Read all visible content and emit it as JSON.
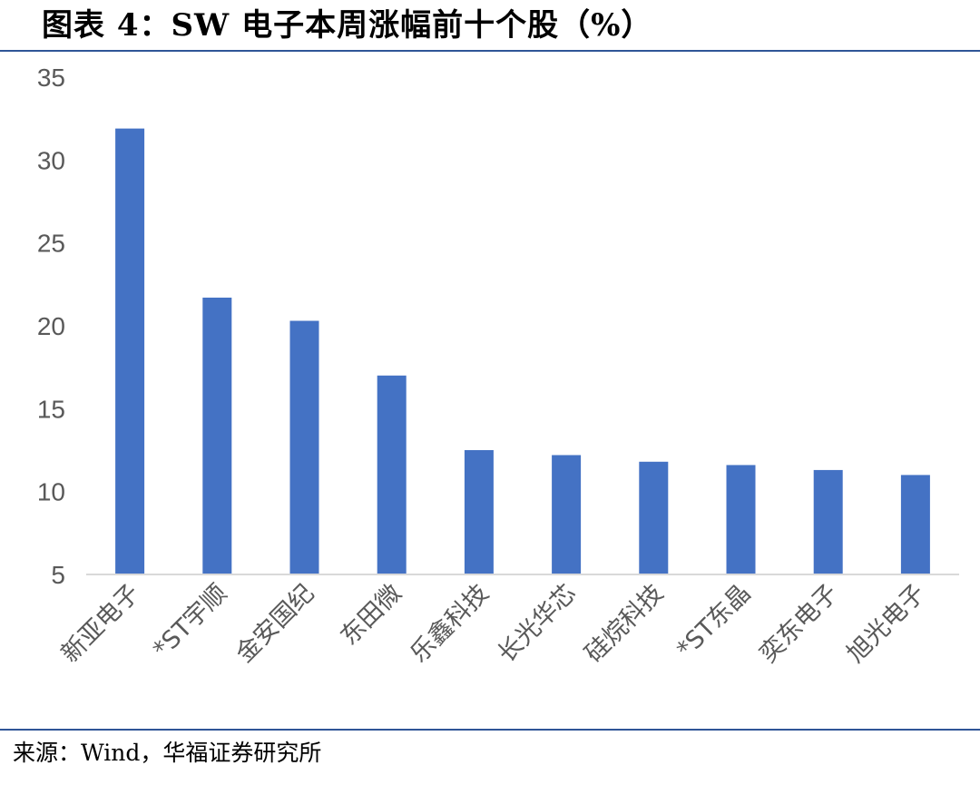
{
  "header": {
    "title": "图表 4：SW 电子本周涨幅前十个股（%）"
  },
  "footer": {
    "source": "来源：Wind，华福证券研究所"
  },
  "chart_data": {
    "type": "bar",
    "title": "图表 4：SW 电子本周涨幅前十个股（%）",
    "categories": [
      "新亚电子",
      "*ST宇顺",
      "金安国纪",
      "东田微",
      "乐鑫科技",
      "长光华芯",
      "硅烷科技",
      "*ST东晶",
      "奕东电子",
      "旭光电子"
    ],
    "series": [
      {
        "values": [
          31.9,
          21.7,
          20.3,
          17.0,
          12.5,
          12.2,
          11.8,
          11.6,
          11.3,
          11.0
        ]
      }
    ],
    "ylim": [
      5,
      35
    ],
    "yticks": [
      5,
      10,
      15,
      20,
      25,
      30,
      35
    ],
    "grid": false,
    "legend": "none",
    "bar_color": "#4472c4"
  }
}
